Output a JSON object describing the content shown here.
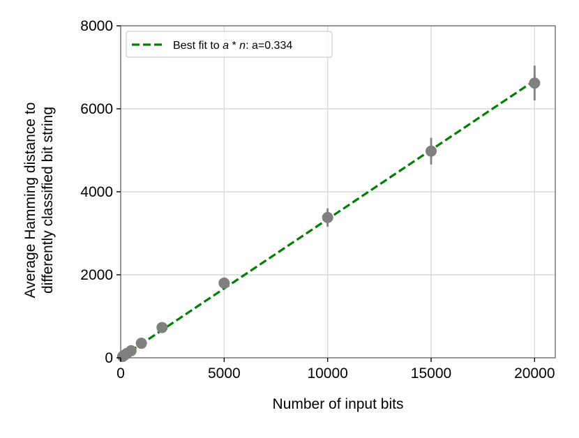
{
  "chart_data": {
    "type": "scatter",
    "xlabel": "Number of input bits",
    "ylabel_lines": [
      "Average Hamming distance to",
      "differently classified bit string"
    ],
    "xlim": [
      0,
      21000
    ],
    "ylim": [
      0,
      8000
    ],
    "x_ticks": [
      0,
      5000,
      10000,
      15000,
      20000
    ],
    "y_ticks": [
      0,
      2000,
      4000,
      6000,
      8000
    ],
    "x_tick_labels": [
      "0",
      "5000",
      "10000",
      "15000",
      "20000"
    ],
    "y_tick_labels": [
      "0",
      "2000",
      "4000",
      "6000",
      "8000"
    ],
    "grid": true,
    "legend_position": "top-left",
    "series": [
      {
        "kind": "errorbar-points",
        "color": "#808080",
        "points": [
          {
            "x": 100,
            "y": 35,
            "err": 15
          },
          {
            "x": 200,
            "y": 70,
            "err": 20
          },
          {
            "x": 300,
            "y": 105,
            "err": 25
          },
          {
            "x": 500,
            "y": 170,
            "err": 30
          },
          {
            "x": 1000,
            "y": 350,
            "err": 40
          },
          {
            "x": 2000,
            "y": 730,
            "err": 60
          },
          {
            "x": 5000,
            "y": 1800,
            "err": 80
          },
          {
            "x": 10000,
            "y": 3380,
            "err": 220
          },
          {
            "x": 15000,
            "y": 4980,
            "err": 320
          },
          {
            "x": 20000,
            "y": 6620,
            "err": 420
          }
        ]
      },
      {
        "kind": "fit-line",
        "name": "Best fit to a * n: a=0.334",
        "legend_parts": {
          "prefix": "Best fit to ",
          "a": "a",
          "op": " * ",
          "n": "n",
          "suffix": ": a=0.334"
        },
        "slope": 0.334,
        "x_range": [
          0,
          20000
        ],
        "color": "#008000",
        "dashed": true
      }
    ]
  }
}
